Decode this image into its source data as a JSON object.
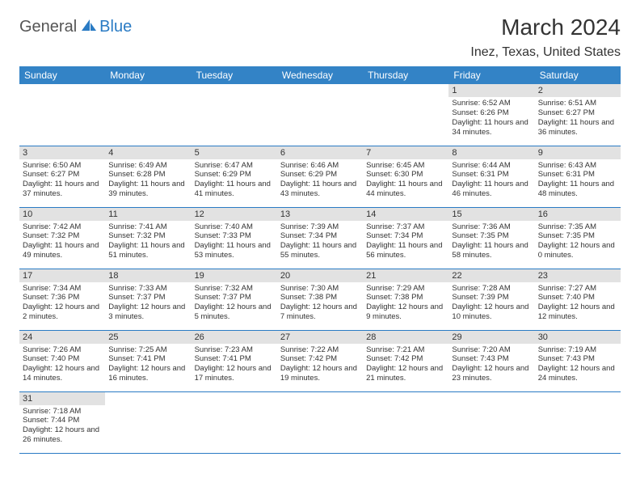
{
  "logo": {
    "main": "General",
    "accent": "Blue"
  },
  "title": "March 2024",
  "location": "Inez, Texas, United States",
  "colors": {
    "header_bg": "#3383c6",
    "header_text": "#ffffff",
    "divider": "#2a7bc4",
    "daynum_bg": "#e2e2e2",
    "text": "#333333",
    "logo_accent": "#2a7bc4"
  },
  "weekdays": [
    "Sunday",
    "Monday",
    "Tuesday",
    "Wednesday",
    "Thursday",
    "Friday",
    "Saturday"
  ],
  "first_weekday_index": 5,
  "days": [
    {
      "n": 1,
      "sr": "6:52 AM",
      "ss": "6:26 PM",
      "dl": "11 hours and 34 minutes."
    },
    {
      "n": 2,
      "sr": "6:51 AM",
      "ss": "6:27 PM",
      "dl": "11 hours and 36 minutes."
    },
    {
      "n": 3,
      "sr": "6:50 AM",
      "ss": "6:27 PM",
      "dl": "11 hours and 37 minutes."
    },
    {
      "n": 4,
      "sr": "6:49 AM",
      "ss": "6:28 PM",
      "dl": "11 hours and 39 minutes."
    },
    {
      "n": 5,
      "sr": "6:47 AM",
      "ss": "6:29 PM",
      "dl": "11 hours and 41 minutes."
    },
    {
      "n": 6,
      "sr": "6:46 AM",
      "ss": "6:29 PM",
      "dl": "11 hours and 43 minutes."
    },
    {
      "n": 7,
      "sr": "6:45 AM",
      "ss": "6:30 PM",
      "dl": "11 hours and 44 minutes."
    },
    {
      "n": 8,
      "sr": "6:44 AM",
      "ss": "6:31 PM",
      "dl": "11 hours and 46 minutes."
    },
    {
      "n": 9,
      "sr": "6:43 AM",
      "ss": "6:31 PM",
      "dl": "11 hours and 48 minutes."
    },
    {
      "n": 10,
      "sr": "7:42 AM",
      "ss": "7:32 PM",
      "dl": "11 hours and 49 minutes."
    },
    {
      "n": 11,
      "sr": "7:41 AM",
      "ss": "7:32 PM",
      "dl": "11 hours and 51 minutes."
    },
    {
      "n": 12,
      "sr": "7:40 AM",
      "ss": "7:33 PM",
      "dl": "11 hours and 53 minutes."
    },
    {
      "n": 13,
      "sr": "7:39 AM",
      "ss": "7:34 PM",
      "dl": "11 hours and 55 minutes."
    },
    {
      "n": 14,
      "sr": "7:37 AM",
      "ss": "7:34 PM",
      "dl": "11 hours and 56 minutes."
    },
    {
      "n": 15,
      "sr": "7:36 AM",
      "ss": "7:35 PM",
      "dl": "11 hours and 58 minutes."
    },
    {
      "n": 16,
      "sr": "7:35 AM",
      "ss": "7:35 PM",
      "dl": "12 hours and 0 minutes."
    },
    {
      "n": 17,
      "sr": "7:34 AM",
      "ss": "7:36 PM",
      "dl": "12 hours and 2 minutes."
    },
    {
      "n": 18,
      "sr": "7:33 AM",
      "ss": "7:37 PM",
      "dl": "12 hours and 3 minutes."
    },
    {
      "n": 19,
      "sr": "7:32 AM",
      "ss": "7:37 PM",
      "dl": "12 hours and 5 minutes."
    },
    {
      "n": 20,
      "sr": "7:30 AM",
      "ss": "7:38 PM",
      "dl": "12 hours and 7 minutes."
    },
    {
      "n": 21,
      "sr": "7:29 AM",
      "ss": "7:38 PM",
      "dl": "12 hours and 9 minutes."
    },
    {
      "n": 22,
      "sr": "7:28 AM",
      "ss": "7:39 PM",
      "dl": "12 hours and 10 minutes."
    },
    {
      "n": 23,
      "sr": "7:27 AM",
      "ss": "7:40 PM",
      "dl": "12 hours and 12 minutes."
    },
    {
      "n": 24,
      "sr": "7:26 AM",
      "ss": "7:40 PM",
      "dl": "12 hours and 14 minutes."
    },
    {
      "n": 25,
      "sr": "7:25 AM",
      "ss": "7:41 PM",
      "dl": "12 hours and 16 minutes."
    },
    {
      "n": 26,
      "sr": "7:23 AM",
      "ss": "7:41 PM",
      "dl": "12 hours and 17 minutes."
    },
    {
      "n": 27,
      "sr": "7:22 AM",
      "ss": "7:42 PM",
      "dl": "12 hours and 19 minutes."
    },
    {
      "n": 28,
      "sr": "7:21 AM",
      "ss": "7:42 PM",
      "dl": "12 hours and 21 minutes."
    },
    {
      "n": 29,
      "sr": "7:20 AM",
      "ss": "7:43 PM",
      "dl": "12 hours and 23 minutes."
    },
    {
      "n": 30,
      "sr": "7:19 AM",
      "ss": "7:43 PM",
      "dl": "12 hours and 24 minutes."
    },
    {
      "n": 31,
      "sr": "7:18 AM",
      "ss": "7:44 PM",
      "dl": "12 hours and 26 minutes."
    }
  ],
  "labels": {
    "sunrise": "Sunrise:",
    "sunset": "Sunset:",
    "daylight": "Daylight:"
  }
}
